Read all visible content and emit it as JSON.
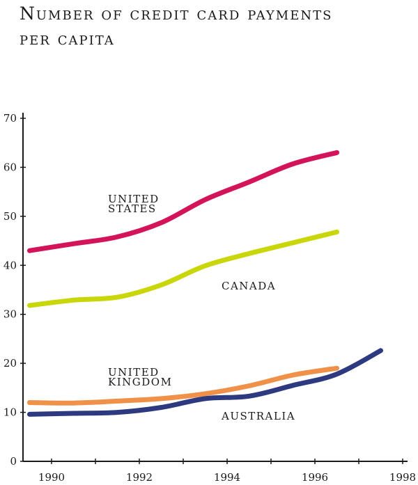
{
  "title_line1": "Number of credit card payments",
  "title_line2": "per capita",
  "chart_data": {
    "type": "line",
    "title": "Number of credit card payments per capita",
    "xlabel": "",
    "ylabel": "",
    "xlim": [
      1989.5,
      1998.2
    ],
    "ylim": [
      0,
      70
    ],
    "x_ticks": [
      1990,
      1992,
      1994,
      1996,
      1998
    ],
    "y_ticks": [
      0,
      10,
      20,
      30,
      40,
      50,
      60,
      70
    ],
    "x_tick_labels": [
      "1990",
      "1992",
      "1994",
      "1996",
      "1998"
    ],
    "y_tick_labels": [
      "0",
      "10",
      "20",
      "30",
      "40",
      "50",
      "60",
      "70"
    ],
    "grid": false,
    "legend": "none",
    "series": [
      {
        "name": "UNITED STATES",
        "color": "#d4145a",
        "points": [
          [
            1989.5,
            43.0
          ],
          [
            1990.5,
            44.4
          ],
          [
            1991.5,
            45.8
          ],
          [
            1992.5,
            48.7
          ],
          [
            1993.5,
            53.4
          ],
          [
            1994.5,
            57.0
          ],
          [
            1995.5,
            60.7
          ],
          [
            1996.5,
            63.0
          ]
        ]
      },
      {
        "name": "CANADA",
        "color": "#c8d60a",
        "points": [
          [
            1989.5,
            31.8
          ],
          [
            1990.5,
            32.9
          ],
          [
            1991.5,
            33.5
          ],
          [
            1992.5,
            36.0
          ],
          [
            1993.5,
            39.9
          ],
          [
            1994.5,
            42.4
          ],
          [
            1995.5,
            44.6
          ],
          [
            1996.5,
            46.8
          ]
        ]
      },
      {
        "name": "UNITED KINGDOM",
        "color": "#f0914a",
        "points": [
          [
            1989.5,
            12.0
          ],
          [
            1990.5,
            11.9
          ],
          [
            1991.5,
            12.3
          ],
          [
            1992.5,
            12.8
          ],
          [
            1993.5,
            13.8
          ],
          [
            1994.5,
            15.4
          ],
          [
            1995.5,
            17.6
          ],
          [
            1996.5,
            19.0
          ]
        ]
      },
      {
        "name": "AUSTRALIA",
        "color": "#2e3a80",
        "points": [
          [
            1989.5,
            9.6
          ],
          [
            1990.5,
            9.8
          ],
          [
            1991.5,
            10.0
          ],
          [
            1992.5,
            11.0
          ],
          [
            1993.5,
            12.8
          ],
          [
            1994.5,
            13.3
          ],
          [
            1995.5,
            15.5
          ],
          [
            1996.5,
            17.8
          ],
          [
            1997.5,
            22.6
          ]
        ]
      }
    ],
    "annotations": [
      {
        "lines": [
          "UNITED",
          "STATES"
        ],
        "series": "UNITED STATES"
      },
      {
        "lines": [
          "CANADA"
        ],
        "series": "CANADA"
      },
      {
        "lines": [
          "UNITED",
          "KINGDOM"
        ],
        "series": "UNITED KINGDOM"
      },
      {
        "lines": [
          "AUSTRALIA"
        ],
        "series": "AUSTRALIA"
      }
    ]
  }
}
